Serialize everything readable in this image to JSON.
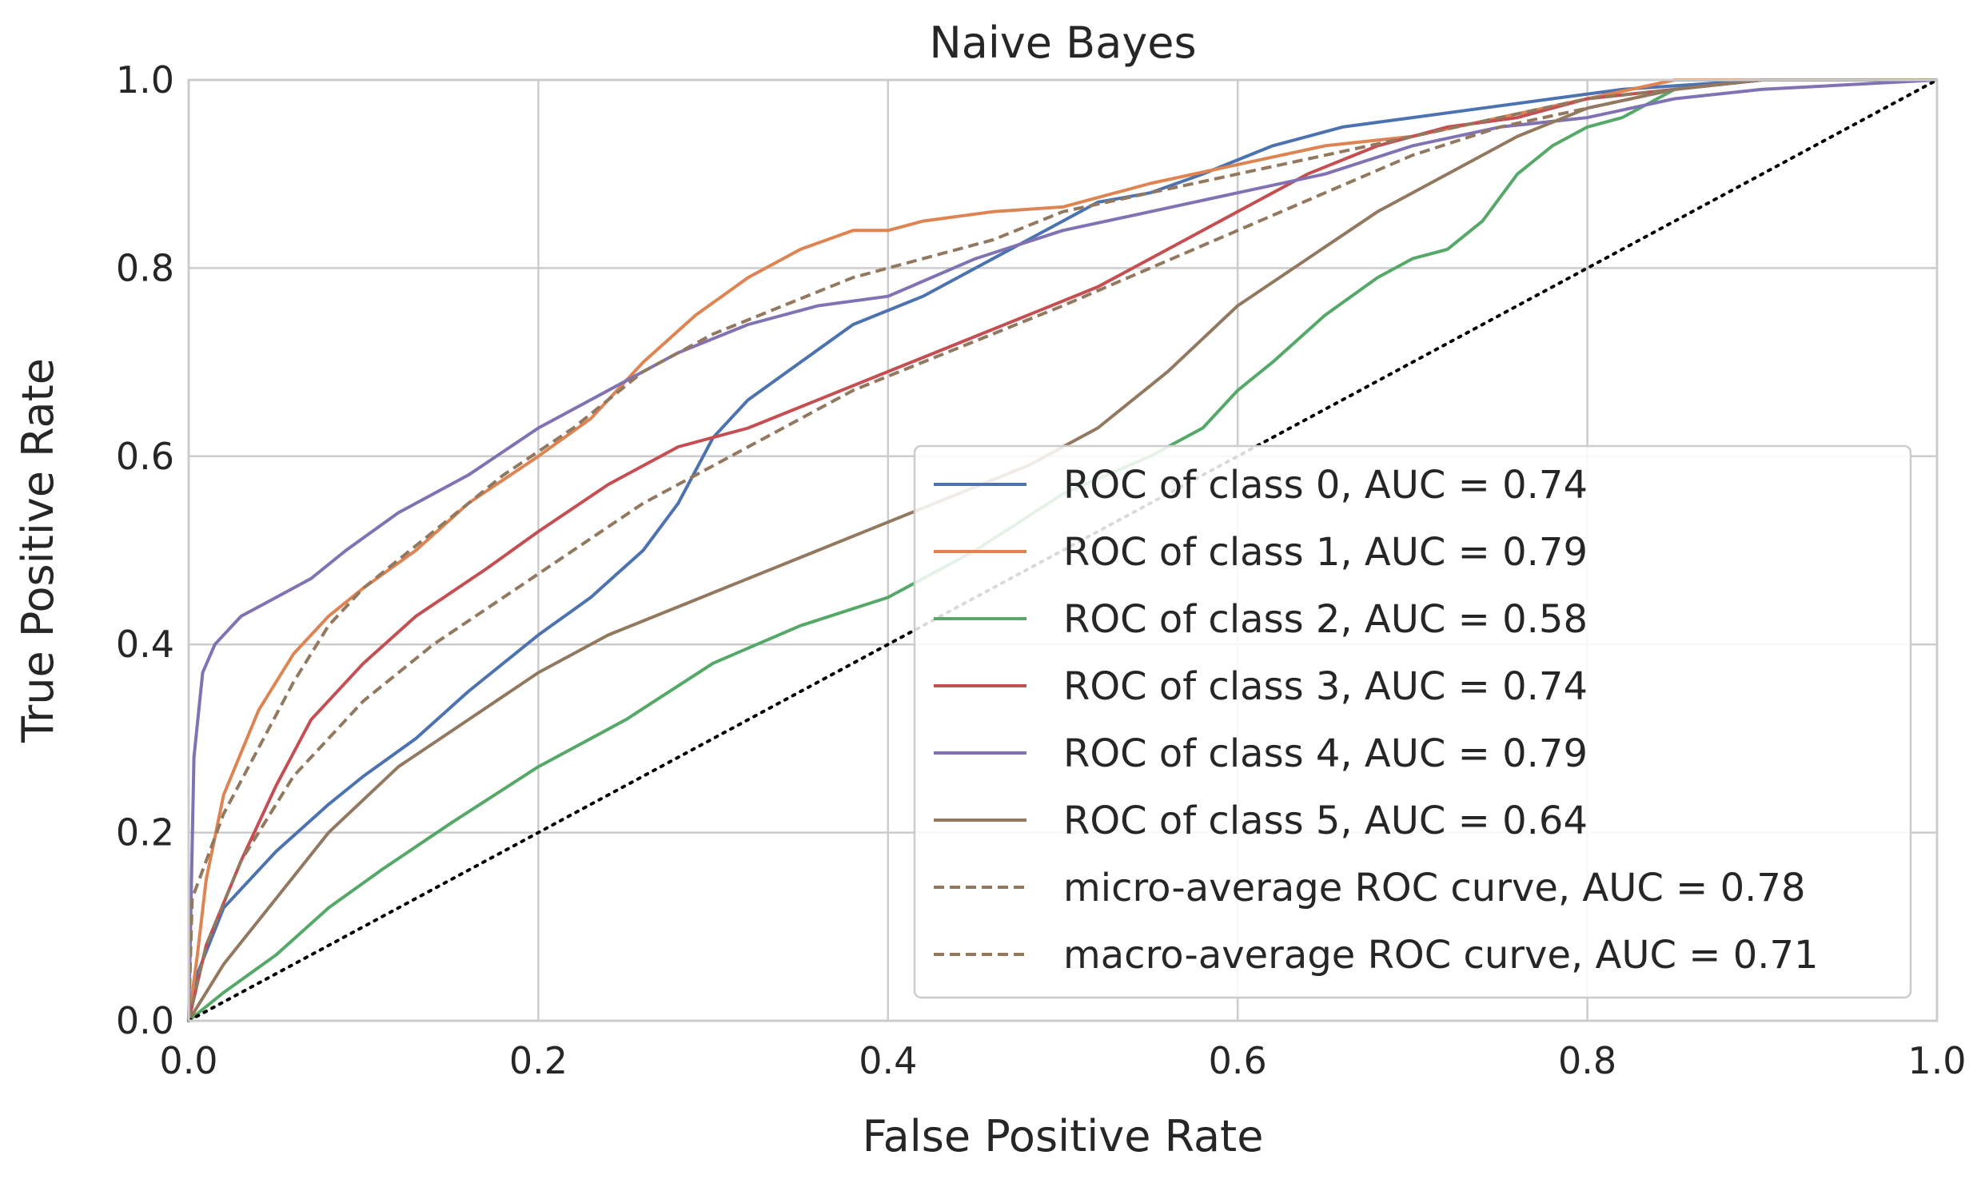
{
  "chart_data": {
    "type": "line",
    "title": "Naive Bayes",
    "xlabel": "False Positive Rate",
    "ylabel": "True Positive Rate",
    "xlim": [
      0.0,
      1.0
    ],
    "ylim": [
      0.0,
      1.0
    ],
    "xticks": [
      "0.0",
      "0.2",
      "0.4",
      "0.6",
      "0.8",
      "1.0"
    ],
    "yticks": [
      "0.0",
      "0.2",
      "0.4",
      "0.6",
      "0.8",
      "1.0"
    ],
    "grid": true,
    "legend_position": "lower-right",
    "series": [
      {
        "name": "ROC of class 0, AUC = 0.74",
        "color": "#4c72b0",
        "style": "solid",
        "x": [
          0,
          0.005,
          0.02,
          0.05,
          0.08,
          0.1,
          0.13,
          0.16,
          0.2,
          0.23,
          0.26,
          0.28,
          0.3,
          0.32,
          0.35,
          0.38,
          0.42,
          0.45,
          0.48,
          0.52,
          0.55,
          0.58,
          0.62,
          0.66,
          0.7,
          0.74,
          0.78,
          0.82,
          0.86,
          0.9,
          0.95,
          1.0
        ],
        "y": [
          0,
          0.05,
          0.12,
          0.18,
          0.23,
          0.26,
          0.3,
          0.35,
          0.41,
          0.45,
          0.5,
          0.55,
          0.62,
          0.66,
          0.7,
          0.74,
          0.77,
          0.8,
          0.83,
          0.87,
          0.88,
          0.9,
          0.93,
          0.95,
          0.96,
          0.97,
          0.98,
          0.99,
          0.995,
          1.0,
          1.0,
          1.0
        ]
      },
      {
        "name": "ROC of class 1, AUC = 0.79",
        "color": "#dd8452",
        "style": "solid",
        "x": [
          0,
          0.005,
          0.01,
          0.02,
          0.04,
          0.06,
          0.08,
          0.1,
          0.13,
          0.16,
          0.2,
          0.23,
          0.26,
          0.29,
          0.32,
          0.35,
          0.38,
          0.4,
          0.42,
          0.46,
          0.5,
          0.55,
          0.6,
          0.65,
          0.7,
          0.75,
          0.8,
          0.85,
          0.9,
          1.0
        ],
        "y": [
          0,
          0.07,
          0.15,
          0.24,
          0.33,
          0.39,
          0.43,
          0.46,
          0.5,
          0.55,
          0.6,
          0.64,
          0.7,
          0.75,
          0.79,
          0.82,
          0.84,
          0.84,
          0.85,
          0.86,
          0.865,
          0.89,
          0.91,
          0.93,
          0.94,
          0.96,
          0.98,
          1.0,
          1.0,
          1.0
        ]
      },
      {
        "name": "ROC of class 2, AUC = 0.58",
        "color": "#55a868",
        "style": "solid",
        "x": [
          0,
          0.02,
          0.05,
          0.08,
          0.11,
          0.15,
          0.2,
          0.25,
          0.3,
          0.35,
          0.4,
          0.45,
          0.5,
          0.55,
          0.58,
          0.6,
          0.62,
          0.65,
          0.68,
          0.7,
          0.72,
          0.74,
          0.76,
          0.78,
          0.8,
          0.82,
          0.85,
          0.9,
          1.0
        ],
        "y": [
          0,
          0.03,
          0.07,
          0.12,
          0.16,
          0.21,
          0.27,
          0.32,
          0.38,
          0.42,
          0.45,
          0.5,
          0.56,
          0.6,
          0.63,
          0.67,
          0.7,
          0.75,
          0.79,
          0.81,
          0.82,
          0.85,
          0.9,
          0.93,
          0.95,
          0.96,
          0.99,
          1.0,
          1.0
        ]
      },
      {
        "name": "ROC of class 3, AUC = 0.74",
        "color": "#c44e52",
        "style": "solid",
        "x": [
          0,
          0.01,
          0.03,
          0.05,
          0.07,
          0.1,
          0.13,
          0.17,
          0.2,
          0.24,
          0.28,
          0.32,
          0.36,
          0.4,
          0.44,
          0.48,
          0.52,
          0.56,
          0.6,
          0.64,
          0.68,
          0.72,
          0.76,
          0.8,
          0.85,
          0.9,
          1.0
        ],
        "y": [
          0,
          0.08,
          0.17,
          0.25,
          0.32,
          0.38,
          0.43,
          0.48,
          0.52,
          0.57,
          0.61,
          0.63,
          0.66,
          0.69,
          0.72,
          0.75,
          0.78,
          0.82,
          0.86,
          0.9,
          0.93,
          0.95,
          0.96,
          0.98,
          0.99,
          1.0,
          1.0
        ]
      },
      {
        "name": "ROC of class 4, AUC = 0.79",
        "color": "#8172b3",
        "style": "solid",
        "x": [
          0,
          0.003,
          0.008,
          0.015,
          0.03,
          0.05,
          0.07,
          0.09,
          0.12,
          0.16,
          0.2,
          0.24,
          0.28,
          0.32,
          0.36,
          0.4,
          0.45,
          0.5,
          0.55,
          0.6,
          0.65,
          0.7,
          0.75,
          0.8,
          0.85,
          0.9,
          1.0
        ],
        "y": [
          0,
          0.28,
          0.37,
          0.4,
          0.43,
          0.45,
          0.47,
          0.5,
          0.54,
          0.58,
          0.63,
          0.67,
          0.71,
          0.74,
          0.76,
          0.77,
          0.81,
          0.84,
          0.86,
          0.88,
          0.9,
          0.93,
          0.95,
          0.96,
          0.98,
          0.99,
          1.0
        ]
      },
      {
        "name": "ROC of class 5, AUC = 0.64",
        "color": "#937860",
        "style": "solid",
        "x": [
          0,
          0.02,
          0.05,
          0.08,
          0.12,
          0.16,
          0.2,
          0.24,
          0.28,
          0.32,
          0.36,
          0.4,
          0.44,
          0.48,
          0.52,
          0.56,
          0.6,
          0.64,
          0.68,
          0.72,
          0.76,
          0.8,
          0.85,
          0.9,
          0.95,
          1.0
        ],
        "y": [
          0,
          0.06,
          0.13,
          0.2,
          0.27,
          0.32,
          0.37,
          0.41,
          0.44,
          0.47,
          0.5,
          0.53,
          0.56,
          0.59,
          0.63,
          0.69,
          0.76,
          0.81,
          0.86,
          0.9,
          0.94,
          0.97,
          0.99,
          1.0,
          1.0,
          1.0
        ]
      },
      {
        "name": "micro-average ROC curve, AUC = 0.78",
        "color": "#937860",
        "style": "dashed",
        "x": [
          0,
          0.002,
          0.01,
          0.02,
          0.04,
          0.06,
          0.08,
          0.1,
          0.14,
          0.18,
          0.22,
          0.26,
          0.3,
          0.34,
          0.38,
          0.42,
          0.46,
          0.5,
          0.55,
          0.6,
          0.65,
          0.7,
          0.75,
          0.8,
          0.85,
          0.9,
          1.0
        ],
        "y": [
          0,
          0.13,
          0.17,
          0.22,
          0.29,
          0.36,
          0.42,
          0.46,
          0.52,
          0.58,
          0.63,
          0.69,
          0.73,
          0.76,
          0.79,
          0.81,
          0.83,
          0.86,
          0.88,
          0.9,
          0.92,
          0.94,
          0.96,
          0.98,
          0.99,
          1.0,
          1.0
        ]
      },
      {
        "name": "macro-average ROC curve, AUC = 0.71",
        "color": "#937860",
        "style": "dashed",
        "x": [
          0,
          0.01,
          0.03,
          0.06,
          0.1,
          0.14,
          0.18,
          0.22,
          0.26,
          0.3,
          0.34,
          0.38,
          0.42,
          0.46,
          0.5,
          0.55,
          0.6,
          0.65,
          0.7,
          0.75,
          0.8,
          0.85,
          0.9,
          1.0
        ],
        "y": [
          0,
          0.08,
          0.17,
          0.26,
          0.34,
          0.4,
          0.45,
          0.5,
          0.55,
          0.59,
          0.63,
          0.67,
          0.7,
          0.73,
          0.76,
          0.8,
          0.84,
          0.88,
          0.92,
          0.95,
          0.97,
          0.99,
          1.0,
          1.0
        ]
      }
    ],
    "reference_line": {
      "x": [
        0,
        1
      ],
      "y": [
        0,
        1
      ],
      "color": "#000000",
      "style": "dotted"
    }
  }
}
